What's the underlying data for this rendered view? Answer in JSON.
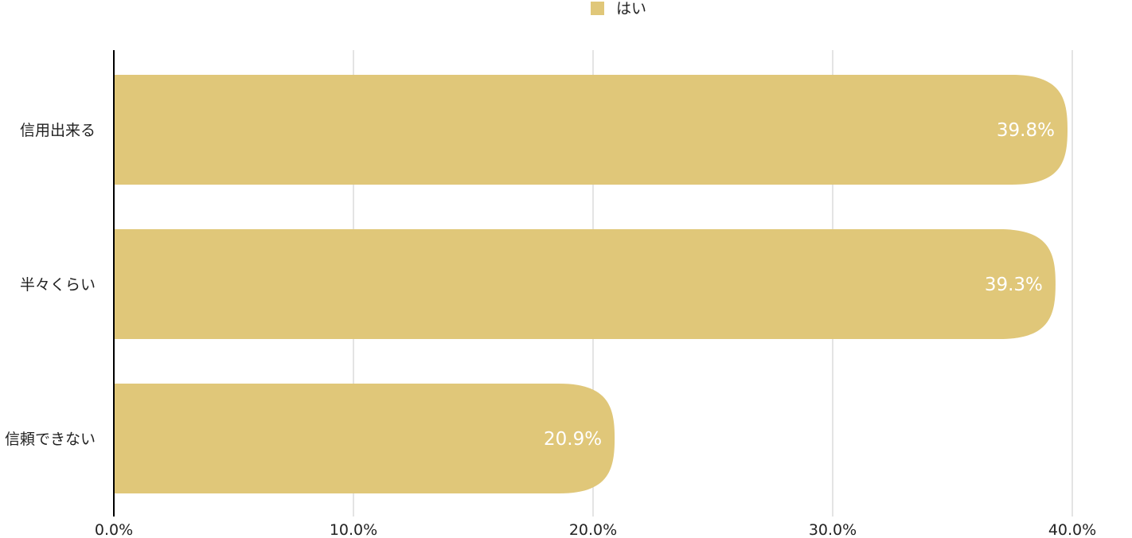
{
  "chart_data": {
    "type": "bar",
    "orientation": "horizontal",
    "categories": [
      "信用出来る",
      "半々くらい",
      "信頼できない"
    ],
    "series": [
      {
        "name": "はい",
        "values": [
          39.8,
          39.3,
          20.9
        ],
        "color": "#e0c779"
      }
    ],
    "value_labels": [
      "39.8%",
      "39.3%",
      "20.9%"
    ],
    "xlim": [
      0,
      40
    ],
    "x_ticks": [
      0,
      10,
      20,
      30,
      40
    ],
    "x_tick_labels": [
      "0.0%",
      "10.0%",
      "20.0%",
      "30.0%",
      "40.0%"
    ],
    "grid": true,
    "legend_position": "top-center",
    "colors": {
      "bar": "#e0c779",
      "grid": "#c8c8c8",
      "axis": "#000000",
      "label_text": "#222222",
      "value_text": "#ffffff"
    }
  }
}
